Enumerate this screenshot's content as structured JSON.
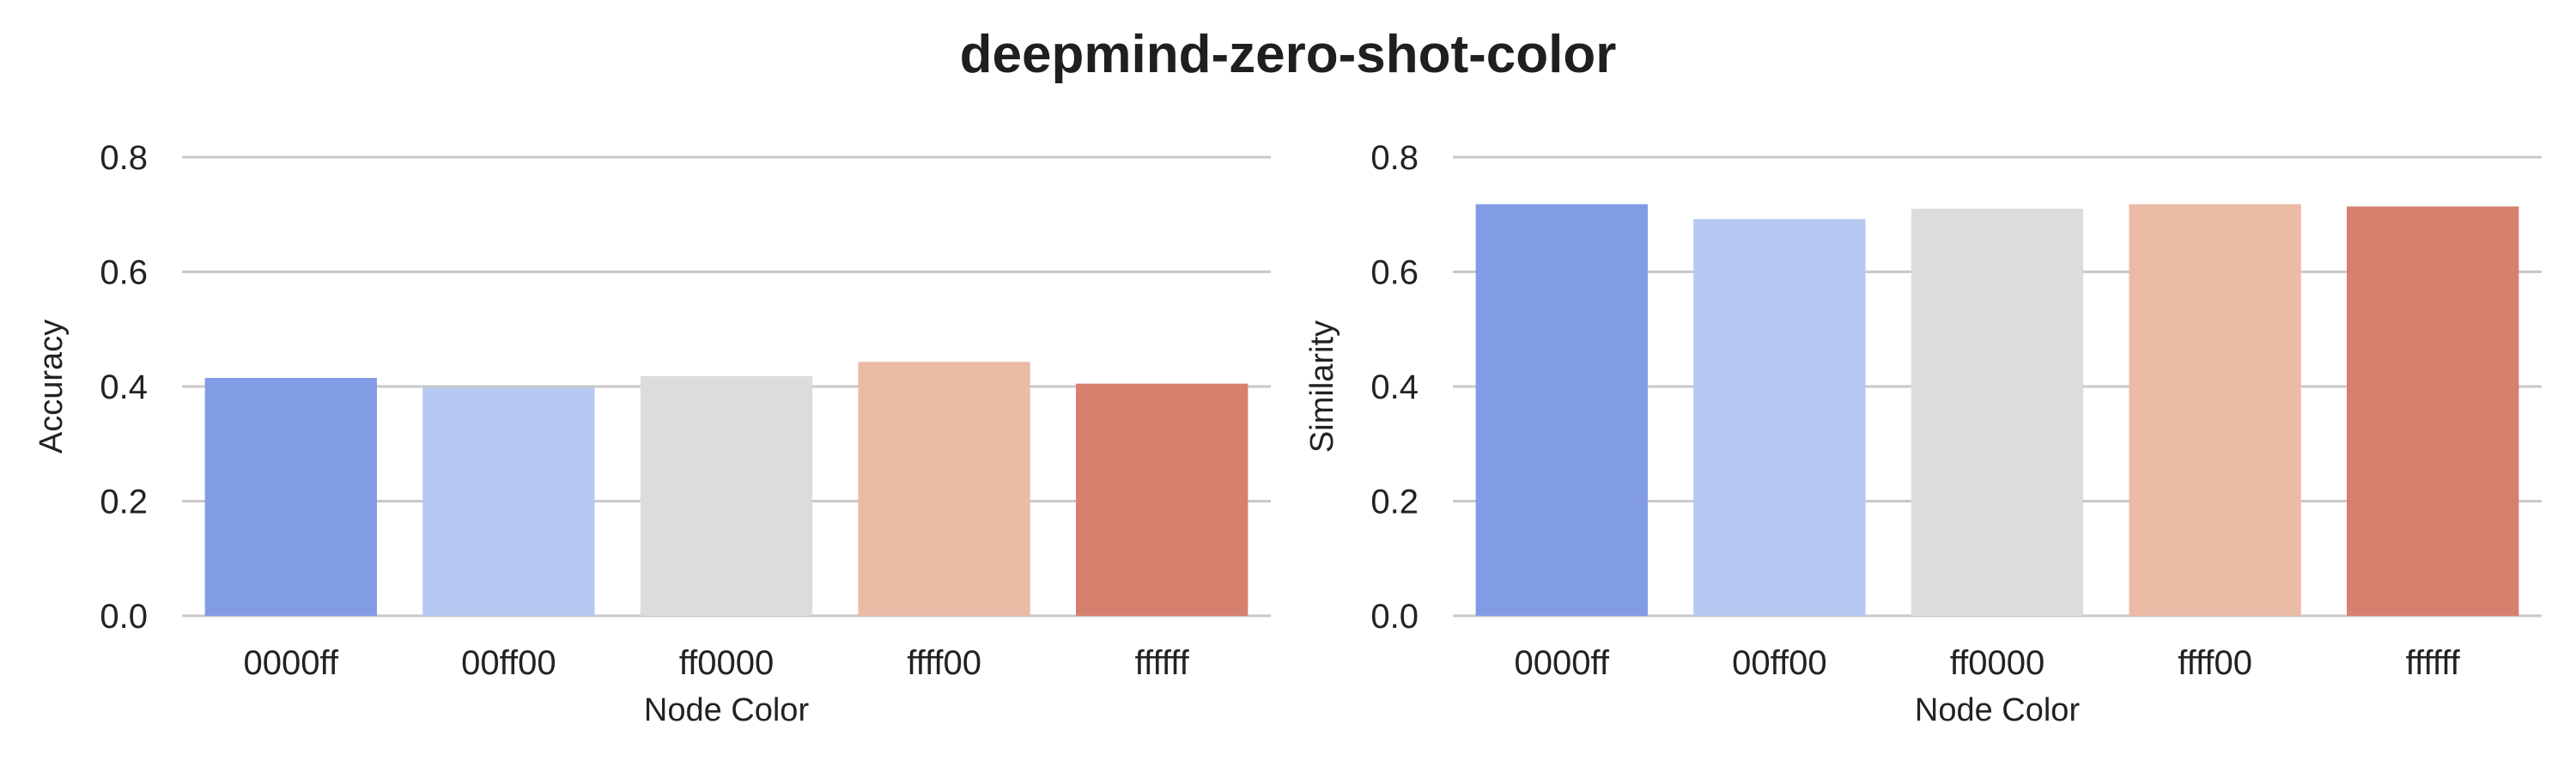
{
  "title": "deepmind-zero-shot-color",
  "palette": {
    "0000ff": "#829be5",
    "00ff00": "#b5c9f2",
    "ff0000": "#dcdcdc",
    "ffff00": "#ecbba6",
    "ffffff": "#d6806d",
    "grid": "#c8c8c8"
  },
  "chart_data": [
    {
      "type": "bar",
      "categories": [
        "0000ff",
        "00ff00",
        "ff0000",
        "ffff00",
        "ffffff"
      ],
      "values": [
        0.415,
        0.398,
        0.418,
        0.443,
        0.405
      ],
      "xlabel": "Node Color",
      "ylabel": "Accuracy",
      "ylim": [
        0,
        0.8
      ],
      "yticks": [
        "0.0",
        "0.2",
        "0.4",
        "0.6",
        "0.8"
      ],
      "grid": true
    },
    {
      "type": "bar",
      "categories": [
        "0000ff",
        "00ff00",
        "ff0000",
        "ffff00",
        "ffffff"
      ],
      "values": [
        0.718,
        0.692,
        0.71,
        0.718,
        0.714
      ],
      "xlabel": "Node Color",
      "ylabel": "Similarity",
      "ylim": [
        0,
        0.8
      ],
      "yticks": [
        "0.0",
        "0.2",
        "0.4",
        "0.6",
        "0.8"
      ],
      "grid": true
    }
  ]
}
